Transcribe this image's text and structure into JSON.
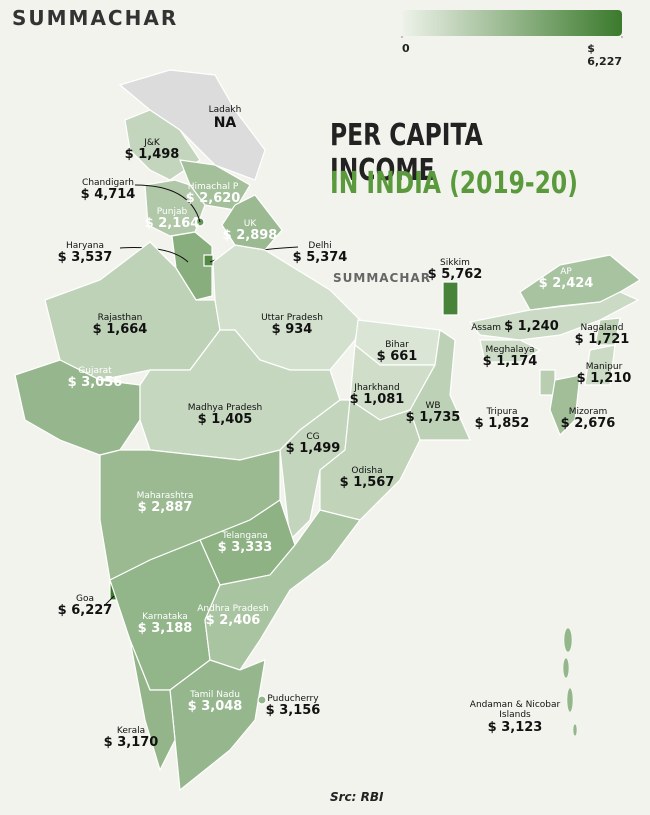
{
  "chart_data": {
    "type": "choropleth",
    "brand": "SUMMACHAR",
    "title_line1": "PER CAPITA INCOME",
    "title_line2": "IN INDIA (2019-20)",
    "source": "Src: RBI",
    "color_range": [
      "#eef2ea",
      "#3b7a2c"
    ],
    "colorbar": {
      "lim": [
        0,
        6227
      ],
      "ticks": [
        0,
        {
          "value": 6227,
          "label": "$ 6,227"
        }
      ]
    },
    "regions": [
      {
        "name": "Ladakh",
        "value": null,
        "value_label": "NA"
      },
      {
        "name": "J&K",
        "value": 1498,
        "value_label": "$ 1,498"
      },
      {
        "name": "Himachal P",
        "value": 2620,
        "value_label": "$ 2,620"
      },
      {
        "name": "Punjab",
        "value": 2164,
        "value_label": "$ 2,164"
      },
      {
        "name": "UK",
        "value": 2898,
        "value_label": "$ 2,898"
      },
      {
        "name": "Chandigarh",
        "value": 4714,
        "value_label": "$ 4,714"
      },
      {
        "name": "Haryana",
        "value": 3537,
        "value_label": "$ 3,537"
      },
      {
        "name": "Delhi",
        "value": 5374,
        "value_label": "$ 5,374"
      },
      {
        "name": "Rajasthan",
        "value": 1664,
        "value_label": "$ 1,664"
      },
      {
        "name": "Uttar Pradesh",
        "value": 934,
        "value_label": "$ 934"
      },
      {
        "name": "Bihar",
        "value": 661,
        "value_label": "$ 661"
      },
      {
        "name": "Sikkim",
        "value": 5762,
        "value_label": "$ 5,762"
      },
      {
        "name": "AP",
        "value": 2424,
        "value_label": "$ 2,424"
      },
      {
        "name": "Assam",
        "value": 1240,
        "value_label": "$ 1,240"
      },
      {
        "name": "Nagaland",
        "value": 1721,
        "value_label": "$ 1,721"
      },
      {
        "name": "Meghalaya",
        "value": 1174,
        "value_label": "$ 1,174"
      },
      {
        "name": "Manipur",
        "value": 1210,
        "value_label": "$ 1,210"
      },
      {
        "name": "Tripura",
        "value": 1852,
        "value_label": "$ 1,852"
      },
      {
        "name": "Mizoram",
        "value": 2676,
        "value_label": "$ 2,676"
      },
      {
        "name": "Jharkhand",
        "value": 1081,
        "value_label": "$ 1,081"
      },
      {
        "name": "WB",
        "value": 1735,
        "value_label": "$ 1,735"
      },
      {
        "name": "Gujarat",
        "value": 3056,
        "value_label": "$ 3,056"
      },
      {
        "name": "Madhya Pradesh",
        "value": 1405,
        "value_label": "$ 1,405"
      },
      {
        "name": "CG",
        "value": 1499,
        "value_label": "$ 1,499"
      },
      {
        "name": "Odisha",
        "value": 1567,
        "value_label": "$ 1,567"
      },
      {
        "name": "Maharashtra",
        "value": 2887,
        "value_label": "$ 2,887"
      },
      {
        "name": "Telangana",
        "value": 3333,
        "value_label": "$ 3,333"
      },
      {
        "name": "Goa",
        "value": 6227,
        "value_label": "$ 6,227"
      },
      {
        "name": "Karnataka",
        "value": 3188,
        "value_label": "$ 3,188"
      },
      {
        "name": "Andhra Pradesh",
        "value": 2406,
        "value_label": "$ 2,406"
      },
      {
        "name": "Tamil Nadu",
        "value": 3048,
        "value_label": "$ 3,048"
      },
      {
        "name": "Puducherry",
        "value": 3156,
        "value_label": "$ 3,156"
      },
      {
        "name": "Kerala",
        "value": 3170,
        "value_label": "$ 3,170"
      },
      {
        "name": "Andaman & Nicobar Islands",
        "value": 3123,
        "value_label": "$ 3,123"
      }
    ]
  }
}
